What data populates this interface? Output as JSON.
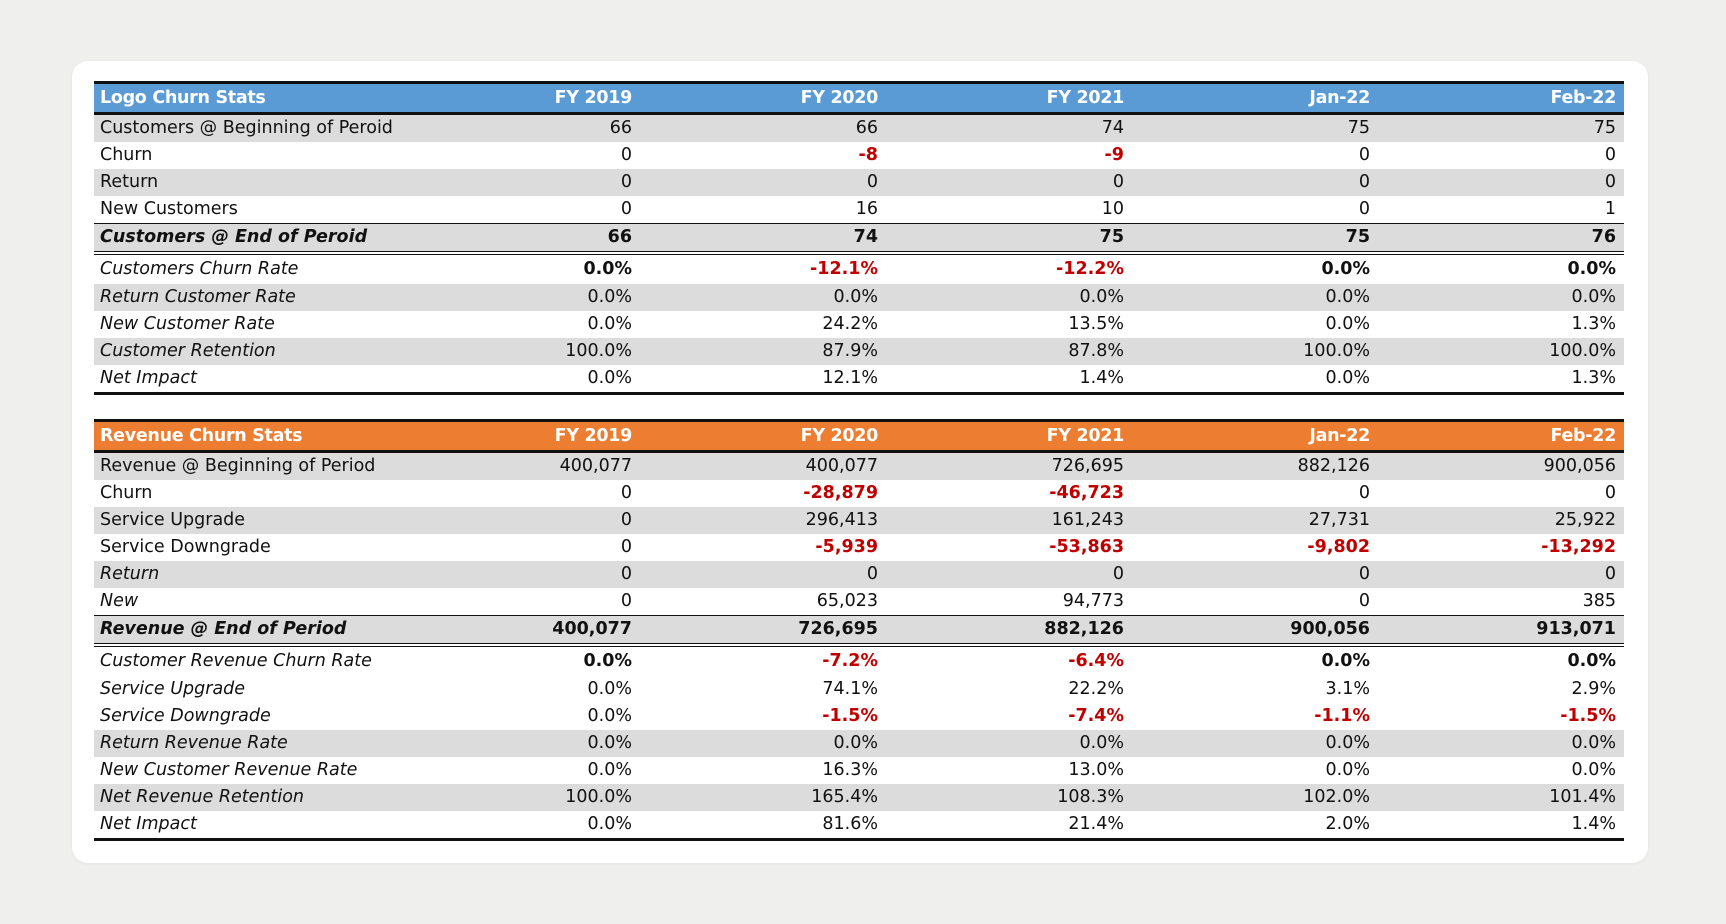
{
  "colors": {
    "logo_header": "#5b9bd5",
    "revenue_header": "#ed7d31",
    "negative": "#c00000",
    "shade": "#dcdcdc"
  },
  "logo_table": {
    "headers": [
      "Logo Churn Stats",
      "FY 2019",
      "FY 2020",
      "FY 2021",
      "Jan-22",
      "Feb-22"
    ],
    "rows": [
      {
        "label": "Customers @ Beginning of Peroid",
        "values": [
          "66",
          "66",
          "74",
          "75",
          "75"
        ]
      },
      {
        "label": "Churn",
        "values": [
          "0",
          "-8",
          "-9",
          "0",
          "0"
        ]
      },
      {
        "label": "Return",
        "values": [
          "0",
          "0",
          "0",
          "0",
          "0"
        ]
      },
      {
        "label": "New Customers",
        "values": [
          "0",
          "16",
          "10",
          "0",
          "1"
        ]
      },
      {
        "label": "Customers @ End of Peroid",
        "values": [
          "66",
          "74",
          "75",
          "75",
          "76"
        ]
      },
      {
        "label": "Customers Churn Rate",
        "values": [
          "0.0%",
          "-12.1%",
          "-12.2%",
          "0.0%",
          "0.0%"
        ]
      },
      {
        "label": "Return Customer Rate",
        "values": [
          "0.0%",
          "0.0%",
          "0.0%",
          "0.0%",
          "0.0%"
        ]
      },
      {
        "label": "New Customer Rate",
        "values": [
          "0.0%",
          "24.2%",
          "13.5%",
          "0.0%",
          "1.3%"
        ]
      },
      {
        "label": "Customer Retention",
        "values": [
          "100.0%",
          "87.9%",
          "87.8%",
          "100.0%",
          "100.0%"
        ]
      },
      {
        "label": "Net Impact",
        "values": [
          "0.0%",
          "12.1%",
          "1.4%",
          "0.0%",
          "1.3%"
        ]
      }
    ]
  },
  "revenue_table": {
    "headers": [
      "Revenue Churn Stats",
      "FY 2019",
      "FY 2020",
      "FY 2021",
      "Jan-22",
      "Feb-22"
    ],
    "rows": [
      {
        "label": "Revenue @ Beginning of Period",
        "values": [
          "400,077",
          "400,077",
          "726,695",
          "882,126",
          "900,056"
        ]
      },
      {
        "label": "Churn",
        "values": [
          "0",
          "-28,879",
          "-46,723",
          "0",
          "0"
        ]
      },
      {
        "label": "Service Upgrade",
        "values": [
          "0",
          "296,413",
          "161,243",
          "27,731",
          "25,922"
        ]
      },
      {
        "label": "Service Downgrade",
        "values": [
          "0",
          "-5,939",
          "-53,863",
          "-9,802",
          "-13,292"
        ]
      },
      {
        "label": "Return",
        "values": [
          "0",
          "0",
          "0",
          "0",
          "0"
        ]
      },
      {
        "label": "New",
        "values": [
          "0",
          "65,023",
          "94,773",
          "0",
          "385"
        ]
      },
      {
        "label": "Revenue @ End of Period",
        "values": [
          "400,077",
          "726,695",
          "882,126",
          "900,056",
          "913,071"
        ]
      },
      {
        "label": "Customer Revenue Churn Rate",
        "values": [
          "0.0%",
          "-7.2%",
          "-6.4%",
          "0.0%",
          "0.0%"
        ]
      },
      {
        "label": "Service Upgrade",
        "values": [
          "0.0%",
          "74.1%",
          "22.2%",
          "3.1%",
          "2.9%"
        ]
      },
      {
        "label": "Service Downgrade",
        "values": [
          "0.0%",
          "-1.5%",
          "-7.4%",
          "-1.1%",
          "-1.5%"
        ]
      },
      {
        "label": "Return Revenue Rate",
        "values": [
          "0.0%",
          "0.0%",
          "0.0%",
          "0.0%",
          "0.0%"
        ]
      },
      {
        "label": "New Customer Revenue Rate",
        "values": [
          "0.0%",
          "16.3%",
          "13.0%",
          "0.0%",
          "0.0%"
        ]
      },
      {
        "label": "Net Revenue Retention",
        "values": [
          "100.0%",
          "165.4%",
          "108.3%",
          "102.0%",
          "101.4%"
        ]
      },
      {
        "label": "Net Impact",
        "values": [
          "0.0%",
          "81.6%",
          "21.4%",
          "2.0%",
          "1.4%"
        ]
      }
    ]
  }
}
